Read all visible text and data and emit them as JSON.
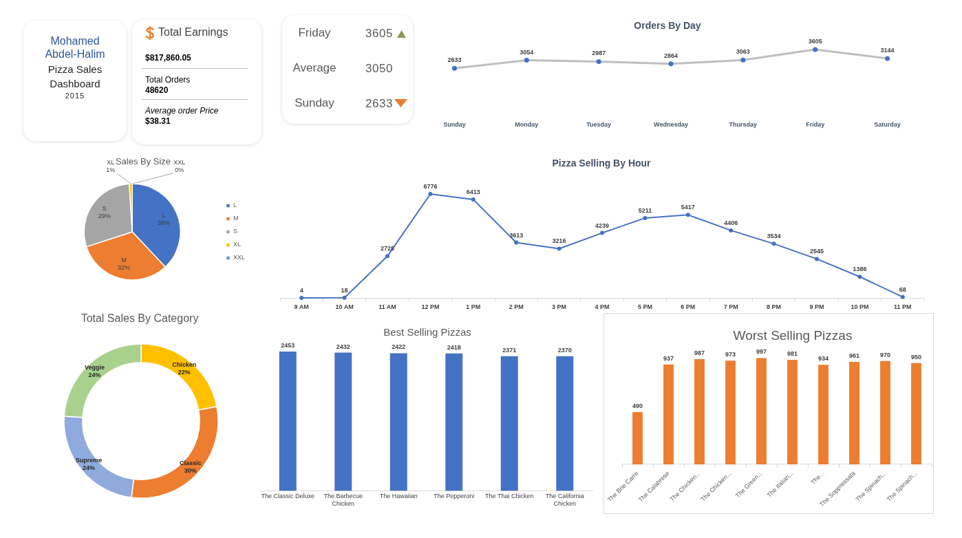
{
  "chart_data": [
    {
      "type": "other",
      "title": "Mohamed Abdel-Halim",
      "subtitle": "Pizza Sales Dashboard",
      "annotations": [
        "2015"
      ]
    },
    {
      "type": "other",
      "title": "Total Earnings",
      "annotations": [
        "$817,860.05",
        "Total Orders",
        "48620",
        "Average order Price",
        "$38.31"
      ]
    },
    {
      "type": "other",
      "annotations": [
        "Friday",
        "3605",
        "Average",
        "3050",
        "Sunday",
        "2633"
      ]
    },
    {
      "type": "line",
      "title": "Orders By Day",
      "categories": [
        "Sunday",
        "Monday",
        "Tuesday",
        "Wednesday",
        "Thursday",
        "Friday",
        "Saturday"
      ],
      "values": [
        2633,
        3054,
        2987,
        2864,
        3063,
        3605,
        3144
      ],
      "color": "#bfbfbf",
      "colors": [
        "#4472c4",
        "#4472c4",
        "#4472c4",
        "#4472c4",
        "#4472c4",
        "#4472c4",
        "#4472c4"
      ],
      "tick_labels": "x",
      "data_labels": true,
      "marker": "circle"
    },
    {
      "type": "pie",
      "title": "Sales By Size",
      "categories": [
        "L",
        "M",
        "S",
        "XL",
        "XXL"
      ],
      "values": [
        38,
        32,
        29,
        1,
        0
      ],
      "colors": [
        "#4472c4",
        "#ed7d31",
        "#a5a5a5",
        "#ffc000",
        "#5b9bd5"
      ],
      "value_labels": [
        "38%",
        "32%",
        "29%",
        "1%",
        "0%"
      ],
      "legend": "right"
    },
    {
      "type": "line",
      "title": "Pizza Selling By Hour",
      "categories": [
        "9 AM",
        "10 AM",
        "11 AM",
        "12 PM",
        "1 PM",
        "2 PM",
        "3 PM",
        "4 PM",
        "5 PM",
        "6 PM",
        "7 PM",
        "8 PM",
        "9 PM",
        "10 PM",
        "11 PM"
      ],
      "values": [
        4,
        18,
        2728,
        6776,
        6413,
        3613,
        3216,
        4239,
        5211,
        5417,
        4406,
        3534,
        2545,
        1386,
        68
      ],
      "color": "#4472c4",
      "tick_labels": "x",
      "data_labels": true,
      "marker": "circle"
    },
    {
      "type": "donut",
      "title": "Total Sales By Category",
      "categories": [
        "Chicken",
        "Classic",
        "Supreme",
        "Veggie"
      ],
      "values": [
        22,
        30,
        24,
        24
      ],
      "colors": [
        "#ffc000",
        "#ed7d31",
        "#8faadc",
        "#a9d18e"
      ],
      "value_labels": [
        "22%",
        "30%",
        "24%",
        "24%"
      ]
    },
    {
      "type": "bar",
      "title": "Best Selling Pizzas",
      "categories": [
        "The Classic Deluxe",
        "The Barbecue Chicken",
        "The Hawaiian",
        "The Pepperoni",
        "The Thai Chicken",
        "The California Chicken"
      ],
      "values": [
        2453,
        2432,
        2422,
        2418,
        2371,
        2370
      ],
      "color": "#4472c4",
      "tick_labels": "x",
      "data_labels": true
    },
    {
      "type": "bar",
      "title": "Worst Selling Pizzas",
      "categories": [
        "The Brie Carre",
        "The Calabrese",
        "The Chicken...",
        "The Chicken...",
        "The Green...",
        "The Italian...",
        "The...",
        "The Soppressata",
        "The Spinach...",
        "The Spinach..."
      ],
      "values": [
        490,
        937,
        987,
        973,
        997,
        981,
        934,
        961,
        970,
        950
      ],
      "color": "#ed7d31",
      "tick_labels": "x",
      "data_labels": true
    }
  ]
}
